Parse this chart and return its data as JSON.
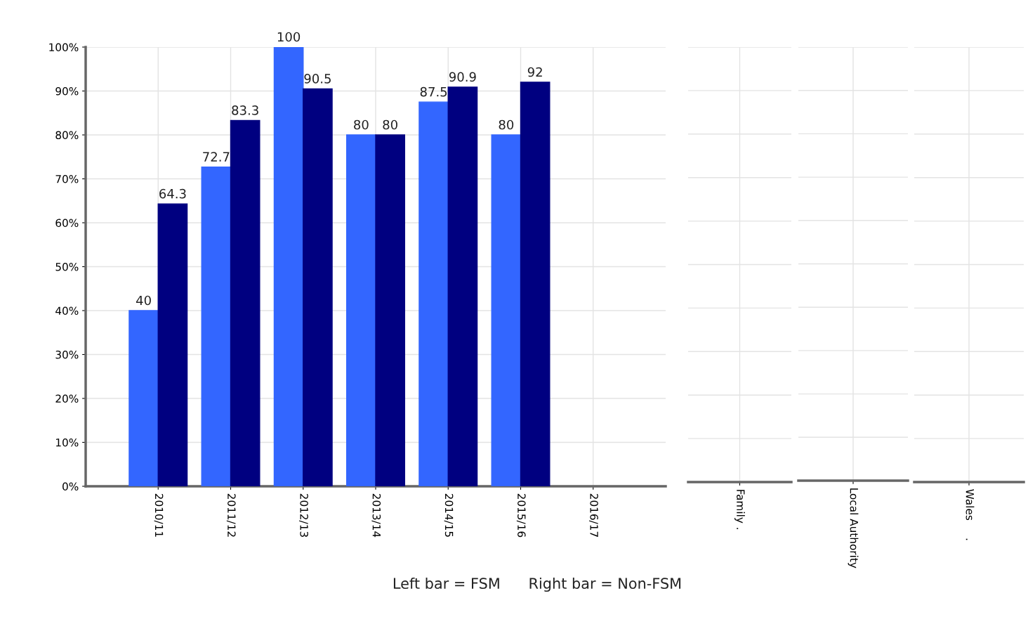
{
  "chart_data": [
    {
      "type": "bar",
      "categories": [
        "2010/11",
        "2011/12",
        "2012/13",
        "2013/14",
        "2014/15",
        "2015/16",
        "2016/17"
      ],
      "series": [
        {
          "color": "#3366ff",
          "values": [
            40,
            72.7,
            100,
            80,
            87.5,
            80,
            null
          ]
        },
        {
          "color": "#000080",
          "values": [
            64.3,
            83.3,
            90.5,
            80,
            90.9,
            92,
            null
          ]
        }
      ],
      "ylim": [
        0,
        100
      ],
      "yticks": [
        {
          "value": 0,
          "label": "0%"
        },
        {
          "value": 10,
          "label": "10%"
        },
        {
          "value": 20,
          "label": "20%"
        },
        {
          "value": 30,
          "label": "30%"
        },
        {
          "value": 40,
          "label": "40%"
        },
        {
          "value": 50,
          "label": "50%"
        },
        {
          "value": 60,
          "label": "60%"
        },
        {
          "value": 70,
          "label": "70%"
        },
        {
          "value": 80,
          "label": "80%"
        },
        {
          "value": 90,
          "label": "90%"
        },
        {
          "value": 100,
          "label": "100%"
        }
      ],
      "data_labels": true,
      "grid": true,
      "annotations": [
        "Left bar = FSM      Right bar = Non-FSM"
      ]
    },
    {
      "type": "bar",
      "categories": [
        "Family ."
      ],
      "values": [
        null
      ],
      "ylim": [
        0,
        100
      ],
      "yticks": [
        0,
        10,
        20,
        30,
        40,
        50,
        60,
        70,
        80,
        90,
        100
      ],
      "tick_labels": "x",
      "grid": true
    },
    {
      "type": "bar",
      "categories": [
        "Local Authority"
      ],
      "values": [
        null
      ],
      "ylim": [
        0,
        100
      ],
      "yticks": [
        0,
        10,
        20,
        30,
        40,
        50,
        60,
        70,
        80,
        90,
        100
      ],
      "tick_labels": "x",
      "grid": true
    },
    {
      "type": "bar",
      "categories": [
        "Wales     ."
      ],
      "values": [
        null
      ],
      "ylim": [
        0,
        100
      ],
      "yticks": [
        0,
        10,
        20,
        30,
        40,
        50,
        60,
        70,
        80,
        90,
        100
      ],
      "tick_labels": "x",
      "grid": true
    }
  ]
}
